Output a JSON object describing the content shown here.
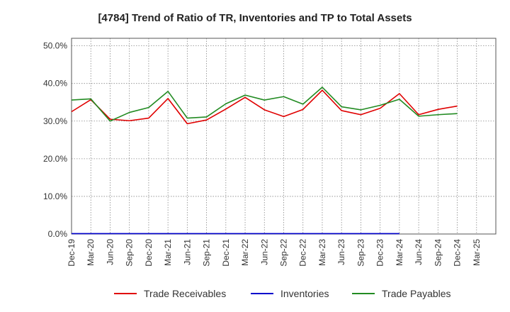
{
  "chart_data": {
    "type": "line",
    "title": "[4784]  Trend of Ratio of TR, Inventories and TP to Total Assets",
    "xlabel": "",
    "ylabel": "",
    "ylim": [
      0,
      52
    ],
    "y_ticks": [
      "0.0%",
      "10.0%",
      "20.0%",
      "30.0%",
      "40.0%",
      "50.0%"
    ],
    "y_tick_values": [
      0,
      10,
      20,
      30,
      40,
      50
    ],
    "categories": [
      "Dec-19",
      "Mar-20",
      "Jun-20",
      "Sep-20",
      "Dec-20",
      "Mar-21",
      "Jun-21",
      "Sep-21",
      "Dec-21",
      "Mar-22",
      "Jun-22",
      "Sep-22",
      "Dec-22",
      "Mar-23",
      "Jun-23",
      "Sep-23",
      "Dec-23",
      "Mar-24",
      "Jun-24",
      "Sep-24",
      "Dec-24",
      "Mar-25"
    ],
    "grid": true,
    "legend_position": "bottom",
    "series": [
      {
        "name": "Trade Receivables",
        "color": "#e00000",
        "values": [
          32.5,
          35.7,
          30.5,
          30.1,
          30.8,
          36.0,
          29.3,
          30.3,
          33.2,
          36.3,
          33.0,
          31.2,
          33.1,
          38.2,
          32.8,
          31.7,
          33.4,
          37.3,
          31.7,
          33.1,
          34.0,
          null
        ]
      },
      {
        "name": "Inventories",
        "color": "#0000cc",
        "values": [
          0.1,
          0.1,
          0.1,
          0.1,
          0.1,
          0.1,
          0.1,
          0.1,
          0.1,
          0.1,
          0.1,
          0.1,
          0.1,
          0.1,
          0.1,
          0.1,
          0.1,
          0.1,
          null,
          null,
          null,
          null
        ]
      },
      {
        "name": "Trade Payables",
        "color": "#228b22",
        "values": [
          35.6,
          35.9,
          30.0,
          32.3,
          33.6,
          37.9,
          30.8,
          31.1,
          34.6,
          36.9,
          35.6,
          36.5,
          34.5,
          39.0,
          33.8,
          33.0,
          34.2,
          35.8,
          31.3,
          31.7,
          32.0,
          null
        ]
      }
    ]
  }
}
